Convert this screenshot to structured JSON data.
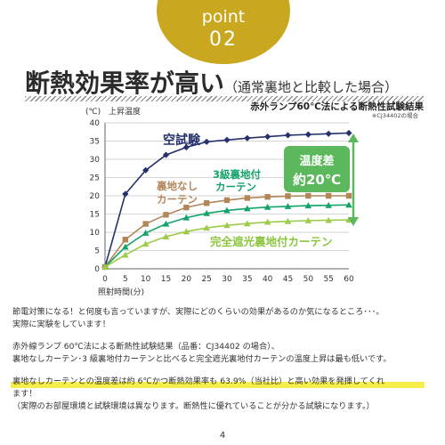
{
  "badge": {
    "word": "point",
    "number": "02"
  },
  "headline": {
    "main": "断熱効果率が高い",
    "sub": "（通常裏地と比較した場合）"
  },
  "chart_title": "赤外ランプ60℃法による断熱性試験結果",
  "chart_note": "※CJ34402の場合",
  "chart_data": {
    "type": "line",
    "title": "赤外ランプ60℃法による断熱性試験結果",
    "xlabel": "照射時間(分)",
    "ylabel": "上昇温度",
    "yunit": "(℃)",
    "xlim": [
      0,
      60
    ],
    "ylim": [
      0,
      40
    ],
    "x_ticks": [
      0,
      5,
      10,
      15,
      20,
      25,
      30,
      35,
      40,
      45,
      50,
      55,
      60
    ],
    "y_ticks": [
      0,
      5,
      10,
      15,
      20,
      25,
      30,
      35,
      40
    ],
    "grid": true,
    "x": [
      0,
      5,
      10,
      15,
      20,
      25,
      30,
      35,
      40,
      45,
      50,
      55,
      60
    ],
    "series": [
      {
        "name": "空試験",
        "color": "#26306b",
        "marker": "diamond",
        "values": [
          0.5,
          20.5,
          27.0,
          31.2,
          33.3,
          34.8,
          35.3,
          35.8,
          36.2,
          36.6,
          36.8,
          37.0,
          37.2
        ]
      },
      {
        "name": "裏地なしカーテン",
        "color": "#b3865a",
        "marker": "square",
        "values": [
          0.5,
          8.0,
          12.3,
          14.8,
          16.8,
          18.0,
          18.8,
          19.4,
          19.7,
          19.9,
          20.0,
          20.0,
          20.0
        ]
      },
      {
        "name": "3級裏地付カーテン",
        "color": "#14a36b",
        "marker": "triangle",
        "values": [
          0.5,
          6.0,
          9.8,
          12.3,
          14.0,
          15.2,
          16.0,
          16.5,
          16.9,
          17.1,
          17.3,
          17.4,
          17.5
        ]
      },
      {
        "name": "完全遮光裏地付カーテン",
        "color": "#9ccc4a",
        "marker": "triangle",
        "values": [
          0.5,
          3.8,
          6.8,
          8.8,
          10.2,
          11.2,
          11.9,
          12.4,
          12.8,
          13.0,
          13.2,
          13.3,
          13.4
        ]
      }
    ],
    "annotation": {
      "line1": "温度差",
      "line2": "約20℃",
      "color": "#5cb85c"
    }
  },
  "series_labels": {
    "blank": "空試験",
    "nolining_line1": "裏地なし",
    "nolining_line2": "カーテン",
    "grade3_line1": "3級裏地付",
    "grade3_line2": "カーテン",
    "blackout": "完全遮光裏地付カーテン"
  },
  "body": {
    "p1_l1": "節電対策になる！と何度も言っていますが、実際にどのくらいの効果があるのか気になるところ･･･。",
    "p1_l2": "実際に実験をしています！",
    "p2_l1": "赤外線ランプ 60℃法による断熱性試験結果（品番：CJ34402 の場合）、",
    "p2_l2": "裏地なしカーテン･3 級裏地付カーテンと比べると完全遮光裏地付カーテンの温度上昇は最も低いです。",
    "p3_l1": "裏地なしカーテンとの温度差は約 6℃かつ断熱効果率も 63.9%（当社比）と高い効果を発揮してくれ",
    "p3_l2": "ます！",
    "p3_l3": "（実際のお部屋環境と試験環境は異なります。断熱性に優れていることが分かる試験になります。）"
  },
  "page_number": "4"
}
